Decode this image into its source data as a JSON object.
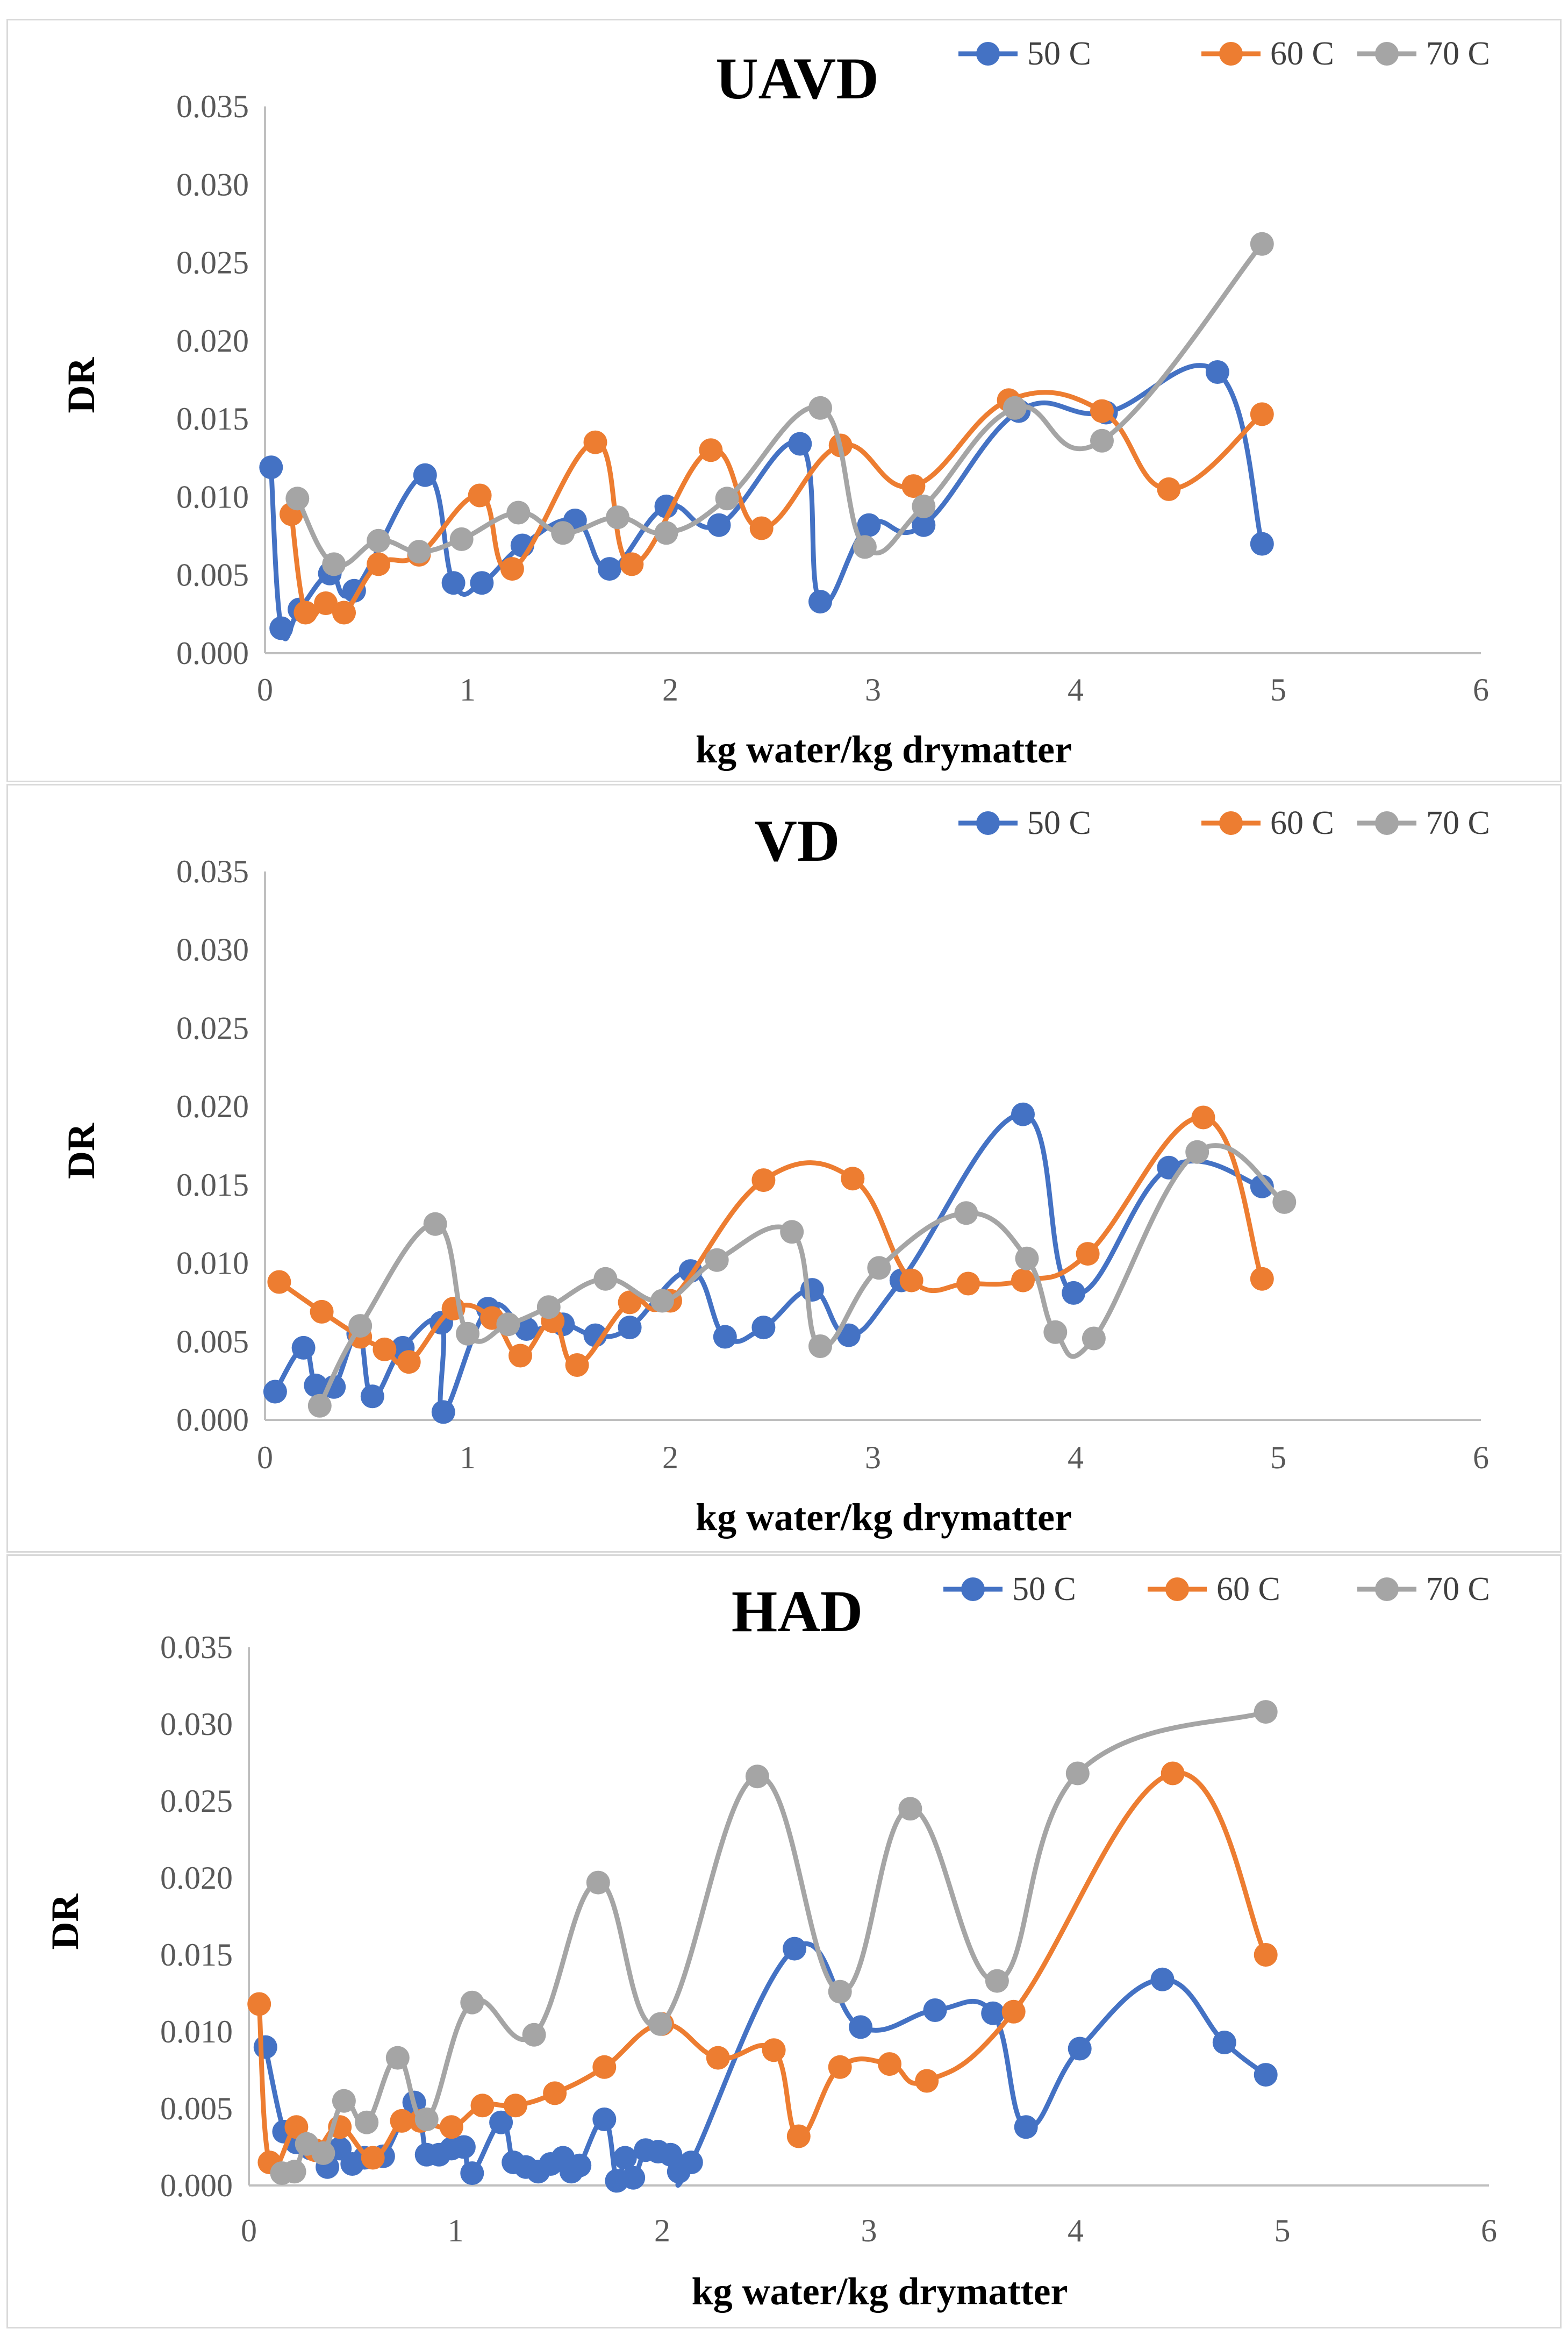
{
  "colors": {
    "s50": "#4472C4",
    "s60": "#ED7D31",
    "s70": "#A5A5A5",
    "axis": "#BFBFBF"
  },
  "chart_data": [
    {
      "type": "line",
      "title": "UAVD",
      "xlabel": "kg water/kg drymatter",
      "ylabel": "DR",
      "xlim": [
        0,
        6
      ],
      "ylim": [
        0,
        0.035
      ],
      "xticks": [
        "0",
        "1",
        "2",
        "3",
        "4",
        "5",
        "6"
      ],
      "yticks": [
        "0.000",
        "0.005",
        "0.010",
        "0.015",
        "0.020",
        "0.025",
        "0.030",
        "0.035"
      ],
      "legend": [
        "50 C",
        "60 C",
        "70 C"
      ],
      "series": [
        {
          "name": "50 C",
          "color": "#4472C4",
          "points": [
            [
              0.03,
              0.0119
            ],
            [
              0.08,
              0.0016
            ],
            [
              0.17,
              0.0028
            ],
            [
              0.32,
              0.0051
            ],
            [
              0.44,
              0.004
            ],
            [
              0.79,
              0.0114
            ],
            [
              0.93,
              0.0045
            ],
            [
              1.07,
              0.0045
            ],
            [
              1.27,
              0.0069
            ],
            [
              1.53,
              0.0085
            ],
            [
              1.7,
              0.0054
            ],
            [
              1.98,
              0.0094
            ],
            [
              2.24,
              0.0082
            ],
            [
              2.64,
              0.0134
            ],
            [
              2.74,
              0.0033
            ],
            [
              2.98,
              0.0082
            ],
            [
              3.25,
              0.0082
            ],
            [
              3.72,
              0.0155
            ],
            [
              4.15,
              0.0154
            ],
            [
              4.7,
              0.018
            ],
            [
              4.92,
              0.007
            ]
          ]
        },
        {
          "name": "60 C",
          "color": "#ED7D31",
          "points": [
            [
              0.13,
              0.0089
            ],
            [
              0.2,
              0.0026
            ],
            [
              0.3,
              0.0032
            ],
            [
              0.39,
              0.0026
            ],
            [
              0.56,
              0.0057
            ],
            [
              0.76,
              0.0063
            ],
            [
              1.06,
              0.0101
            ],
            [
              1.22,
              0.0054
            ],
            [
              1.63,
              0.0135
            ],
            [
              1.81,
              0.0057
            ],
            [
              2.2,
              0.013
            ],
            [
              2.45,
              0.008
            ],
            [
              2.84,
              0.0133
            ],
            [
              3.2,
              0.0107
            ],
            [
              3.67,
              0.0162
            ],
            [
              4.13,
              0.0155
            ],
            [
              4.46,
              0.0105
            ],
            [
              4.92,
              0.0153
            ]
          ]
        },
        {
          "name": "70 C",
          "color": "#A5A5A5",
          "points": [
            [
              0.16,
              0.0099
            ],
            [
              0.34,
              0.0057
            ],
            [
              0.56,
              0.0072
            ],
            [
              0.76,
              0.0065
            ],
            [
              0.97,
              0.0073
            ],
            [
              1.25,
              0.009
            ],
            [
              1.47,
              0.0077
            ],
            [
              1.74,
              0.0087
            ],
            [
              1.98,
              0.0077
            ],
            [
              2.28,
              0.0099
            ],
            [
              2.74,
              0.0157
            ],
            [
              2.96,
              0.0068
            ],
            [
              3.25,
              0.0094
            ],
            [
              3.7,
              0.0157
            ],
            [
              4.13,
              0.0136
            ],
            [
              4.92,
              0.0262
            ]
          ]
        }
      ]
    },
    {
      "type": "line",
      "title": "VD",
      "xlabel": "kg water/kg drymatter",
      "ylabel": "DR",
      "xlim": [
        0,
        6
      ],
      "ylim": [
        0,
        0.035
      ],
      "xticks": [
        "0",
        "1",
        "2",
        "3",
        "4",
        "5",
        "6"
      ],
      "yticks": [
        "0.000",
        "0.005",
        "0.010",
        "0.015",
        "0.020",
        "0.025",
        "0.030",
        "0.035"
      ],
      "legend": [
        "50 C",
        "60 C",
        "70 C"
      ],
      "series": [
        {
          "name": "50 C",
          "color": "#4472C4",
          "points": [
            [
              0.05,
              0.0018
            ],
            [
              0.19,
              0.0046
            ],
            [
              0.25,
              0.0022
            ],
            [
              0.34,
              0.0021
            ],
            [
              0.46,
              0.0055
            ],
            [
              0.53,
              0.0015
            ],
            [
              0.68,
              0.0046
            ],
            [
              0.87,
              0.0062
            ],
            [
              0.88,
              0.0005
            ],
            [
              1.1,
              0.0071
            ],
            [
              1.29,
              0.0058
            ],
            [
              1.47,
              0.0061
            ],
            [
              1.63,
              0.0054
            ],
            [
              1.8,
              0.0059
            ],
            [
              2.1,
              0.0095
            ],
            [
              2.27,
              0.0053
            ],
            [
              2.46,
              0.0059
            ],
            [
              2.7,
              0.0083
            ],
            [
              2.88,
              0.0054
            ],
            [
              3.14,
              0.0089
            ],
            [
              3.74,
              0.0195
            ],
            [
              3.99,
              0.0081
            ],
            [
              4.46,
              0.0161
            ],
            [
              4.92,
              0.0149
            ]
          ]
        },
        {
          "name": "60 C",
          "color": "#ED7D31",
          "points": [
            [
              0.07,
              0.0088
            ],
            [
              0.28,
              0.0069
            ],
            [
              0.47,
              0.0053
            ],
            [
              0.59,
              0.0045
            ],
            [
              0.71,
              0.0037
            ],
            [
              0.93,
              0.0071
            ],
            [
              1.12,
              0.0065
            ],
            [
              1.26,
              0.0041
            ],
            [
              1.42,
              0.0063
            ],
            [
              1.54,
              0.0035
            ],
            [
              1.8,
              0.0075
            ],
            [
              2.0,
              0.0076
            ],
            [
              2.46,
              0.0153
            ],
            [
              2.9,
              0.0154
            ],
            [
              3.19,
              0.0089
            ],
            [
              3.47,
              0.0087
            ],
            [
              3.74,
              0.0089
            ],
            [
              4.06,
              0.0106
            ],
            [
              4.63,
              0.0193
            ],
            [
              4.92,
              0.009
            ]
          ]
        },
        {
          "name": "70 C",
          "color": "#A5A5A5",
          "points": [
            [
              0.27,
              0.0009
            ],
            [
              0.47,
              0.006
            ],
            [
              0.84,
              0.0125
            ],
            [
              1.0,
              0.0055
            ],
            [
              1.2,
              0.0061
            ],
            [
              1.4,
              0.0072
            ],
            [
              1.68,
              0.009
            ],
            [
              1.96,
              0.0076
            ],
            [
              2.23,
              0.0102
            ],
            [
              2.6,
              0.012
            ],
            [
              2.74,
              0.0047
            ],
            [
              3.03,
              0.0097
            ],
            [
              3.46,
              0.0132
            ],
            [
              3.76,
              0.0103
            ],
            [
              3.9,
              0.0056
            ],
            [
              4.09,
              0.0052
            ],
            [
              4.6,
              0.0171
            ],
            [
              5.03,
              0.0139
            ]
          ]
        }
      ]
    },
    {
      "type": "line",
      "title": "HAD",
      "xlabel": "kg water/kg drymatter",
      "ylabel": "DR",
      "xlim": [
        0,
        6
      ],
      "ylim": [
        0,
        0.035
      ],
      "xticks": [
        "0",
        "1",
        "2",
        "3",
        "4",
        "5",
        "6"
      ],
      "yticks": [
        "0.000",
        "0.005",
        "0.010",
        "0.015",
        "0.020",
        "0.025",
        "0.030",
        "0.035"
      ],
      "legend": [
        "50 C",
        "60 C",
        "70 C"
      ],
      "series": [
        {
          "name": "50 C",
          "color": "#4472C4",
          "points": [
            [
              0.08,
              0.009
            ],
            [
              0.17,
              0.0035
            ],
            [
              0.23,
              0.0028
            ],
            [
              0.3,
              0.0024
            ],
            [
              0.38,
              0.0012
            ],
            [
              0.44,
              0.0024
            ],
            [
              0.5,
              0.0014
            ],
            [
              0.56,
              0.0018
            ],
            [
              0.65,
              0.0019
            ],
            [
              0.8,
              0.0054
            ],
            [
              0.86,
              0.002
            ],
            [
              0.92,
              0.002
            ],
            [
              0.98,
              0.0024
            ],
            [
              1.04,
              0.0025
            ],
            [
              1.08,
              0.0008
            ],
            [
              1.22,
              0.0041
            ],
            [
              1.28,
              0.0015
            ],
            [
              1.34,
              0.0012
            ],
            [
              1.4,
              0.0009
            ],
            [
              1.46,
              0.0014
            ],
            [
              1.52,
              0.0018
            ],
            [
              1.56,
              0.0009
            ],
            [
              1.6,
              0.0013
            ],
            [
              1.72,
              0.0043
            ],
            [
              1.78,
              0.0003
            ],
            [
              1.82,
              0.0018
            ],
            [
              1.86,
              0.0005
            ],
            [
              1.92,
              0.0023
            ],
            [
              1.98,
              0.0022
            ],
            [
              2.04,
              0.002
            ],
            [
              2.08,
              0.0009
            ],
            [
              2.14,
              0.0015
            ],
            [
              2.64,
              0.0154
            ],
            [
              2.96,
              0.0103
            ],
            [
              3.32,
              0.0114
            ],
            [
              3.6,
              0.0112
            ],
            [
              3.76,
              0.0038
            ],
            [
              4.02,
              0.0089
            ],
            [
              4.42,
              0.0134
            ],
            [
              4.72,
              0.0093
            ],
            [
              4.92,
              0.0072
            ]
          ]
        },
        {
          "name": "60 C",
          "color": "#ED7D31",
          "points": [
            [
              0.05,
              0.0118
            ],
            [
              0.1,
              0.0015
            ],
            [
              0.23,
              0.0038
            ],
            [
              0.32,
              0.0023
            ],
            [
              0.44,
              0.0038
            ],
            [
              0.6,
              0.0018
            ],
            [
              0.74,
              0.0042
            ],
            [
              0.83,
              0.0042
            ],
            [
              0.98,
              0.0038
            ],
            [
              1.13,
              0.0052
            ],
            [
              1.29,
              0.0052
            ],
            [
              1.48,
              0.006
            ],
            [
              1.72,
              0.0077
            ],
            [
              2.0,
              0.0105
            ],
            [
              2.27,
              0.0083
            ],
            [
              2.54,
              0.0088
            ],
            [
              2.66,
              0.0032
            ],
            [
              2.86,
              0.0077
            ],
            [
              3.1,
              0.0079
            ],
            [
              3.28,
              0.0068
            ],
            [
              3.7,
              0.0113
            ],
            [
              4.47,
              0.0268
            ],
            [
              4.92,
              0.015
            ]
          ]
        },
        {
          "name": "70 C",
          "color": "#A5A5A5",
          "points": [
            [
              0.16,
              0.0008
            ],
            [
              0.22,
              0.0009
            ],
            [
              0.28,
              0.0027
            ],
            [
              0.36,
              0.0021
            ],
            [
              0.46,
              0.0055
            ],
            [
              0.57,
              0.0041
            ],
            [
              0.72,
              0.0083
            ],
            [
              0.86,
              0.0043
            ],
            [
              1.08,
              0.0119
            ],
            [
              1.38,
              0.0098
            ],
            [
              1.69,
              0.0197
            ],
            [
              1.99,
              0.0105
            ],
            [
              2.46,
              0.0266
            ],
            [
              2.86,
              0.0126
            ],
            [
              3.2,
              0.0245
            ],
            [
              3.62,
              0.0133
            ],
            [
              4.01,
              0.0268
            ],
            [
              4.92,
              0.0308
            ]
          ]
        }
      ]
    }
  ]
}
